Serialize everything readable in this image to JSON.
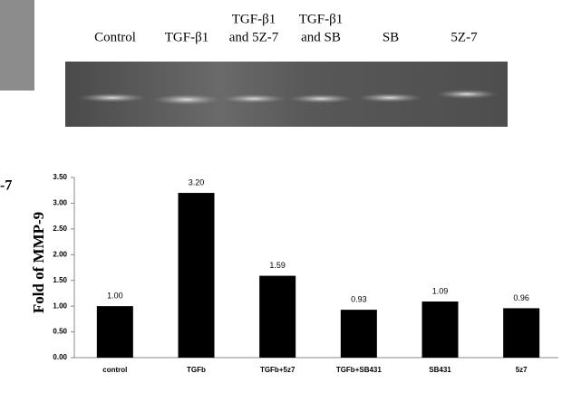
{
  "fragment_text": "-7",
  "gel": {
    "lanes": [
      [
        "Control"
      ],
      [
        "TGF-β1"
      ],
      [
        "TGF-β1",
        "and 5Z-7"
      ],
      [
        "TGF-β1",
        "and SB"
      ],
      [
        "SB"
      ],
      [
        "5Z-7"
      ]
    ]
  },
  "chart_data": {
    "type": "bar",
    "y_label": "Fold of MMP-9",
    "categories": [
      "control",
      "TGFb",
      "TGFb+5z7",
      "TGFb+SB431",
      "SB431",
      "5z7"
    ],
    "values": [
      1.0,
      3.2,
      1.59,
      0.93,
      1.09,
      0.96
    ],
    "value_labels": [
      "1.00",
      "3.20",
      "1.59",
      "0.93",
      "1.09",
      "0.96"
    ],
    "color": "#000000",
    "ylim": [
      0,
      3.5
    ],
    "yticks": [
      {
        "value": 0,
        "label": "0.00"
      },
      {
        "value": 0.5,
        "label": "0.50"
      },
      {
        "value": 1,
        "label": "1.00"
      },
      {
        "value": 1.5,
        "label": "1.50"
      },
      {
        "value": 2,
        "label": "2.00"
      },
      {
        "value": 2.5,
        "label": "2.50"
      },
      {
        "value": 3,
        "label": "3.00"
      },
      {
        "value": 3.5,
        "label": "3.50"
      }
    ],
    "grid": false
  }
}
